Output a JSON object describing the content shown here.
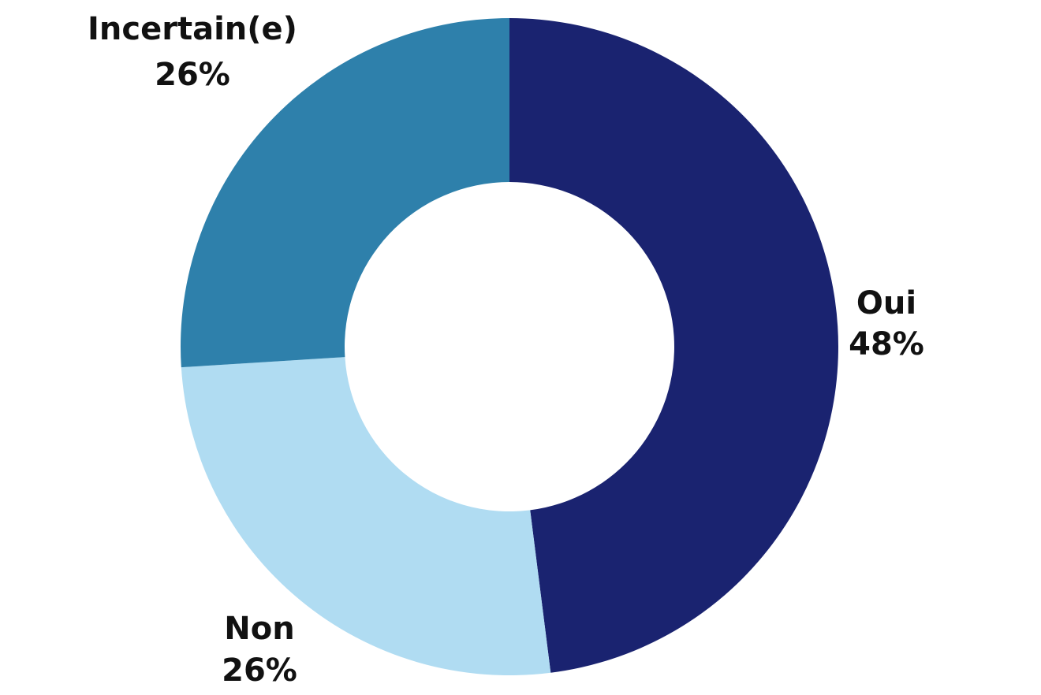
{
  "chart_data": {
    "type": "pie",
    "variant": "donut",
    "title": "",
    "start": "top (12 o'clock), clockwise",
    "labels_placement": "outside slices",
    "slices": [
      {
        "label": "Oui",
        "value": 48,
        "value_label": "48%",
        "color": "#1a2370"
      },
      {
        "label": "Non",
        "value": 26,
        "value_label": "26%",
        "color": "#b0dcf2"
      },
      {
        "label": "Incertain(e)",
        "value": 26,
        "value_label": "26%",
        "color": "#2e80ab"
      }
    ]
  }
}
